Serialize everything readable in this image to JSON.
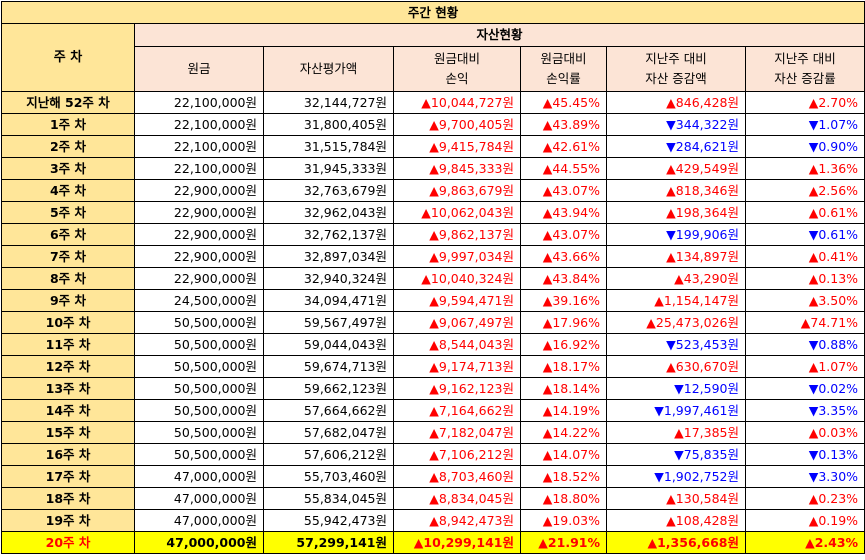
{
  "title": "주간 현황",
  "week_header": "주 차",
  "asset_header": "자산현황",
  "columns": [
    "원금",
    "자산평가액",
    "원금대비\n손익",
    "원금대비\n손익률",
    "지난주 대비\n자산 증감액",
    "지난주 대비\n자산 증감률"
  ],
  "arrows": {
    "up": "▲",
    "down": "▼"
  },
  "colors": {
    "header_yellow": "#ffe699",
    "header_peach": "#fce4d6",
    "highlight": "#ffff00",
    "up": "#ff0000",
    "down": "#0000ff"
  },
  "rows": [
    {
      "week": "지난해 52주 차",
      "principal": "22,100,000원",
      "valuation": "32,144,727원",
      "pl": "10,044,727원",
      "pl_dir": "up",
      "rate": "45.45%",
      "rate_dir": "up",
      "chg": "846,428원",
      "chg_dir": "up",
      "chg_rate": "2.70%",
      "chg_rate_dir": "up"
    },
    {
      "week": "1주 차",
      "principal": "22,100,000원",
      "valuation": "31,800,405원",
      "pl": "9,700,405원",
      "pl_dir": "up",
      "rate": "43.89%",
      "rate_dir": "up",
      "chg": "344,322원",
      "chg_dir": "down",
      "chg_rate": "1.07%",
      "chg_rate_dir": "down"
    },
    {
      "week": "2주 차",
      "principal": "22,100,000원",
      "valuation": "31,515,784원",
      "pl": "9,415,784원",
      "pl_dir": "up",
      "rate": "42.61%",
      "rate_dir": "up",
      "chg": "284,621원",
      "chg_dir": "down",
      "chg_rate": "0.90%",
      "chg_rate_dir": "down"
    },
    {
      "week": "3주 차",
      "principal": "22,100,000원",
      "valuation": "31,945,333원",
      "pl": "9,845,333원",
      "pl_dir": "up",
      "rate": "44.55%",
      "rate_dir": "up",
      "chg": "429,549원",
      "chg_dir": "up",
      "chg_rate": "1.36%",
      "chg_rate_dir": "up"
    },
    {
      "week": "4주 차",
      "principal": "22,900,000원",
      "valuation": "32,763,679원",
      "pl": "9,863,679원",
      "pl_dir": "up",
      "rate": "43.07%",
      "rate_dir": "up",
      "chg": "818,346원",
      "chg_dir": "up",
      "chg_rate": "2.56%",
      "chg_rate_dir": "up"
    },
    {
      "week": "5주 차",
      "principal": "22,900,000원",
      "valuation": "32,962,043원",
      "pl": "10,062,043원",
      "pl_dir": "up",
      "rate": "43.94%",
      "rate_dir": "up",
      "chg": "198,364원",
      "chg_dir": "up",
      "chg_rate": "0.61%",
      "chg_rate_dir": "up"
    },
    {
      "week": "6주 차",
      "principal": "22,900,000원",
      "valuation": "32,762,137원",
      "pl": "9,862,137원",
      "pl_dir": "up",
      "rate": "43.07%",
      "rate_dir": "up",
      "chg": "199,906원",
      "chg_dir": "down",
      "chg_rate": "0.61%",
      "chg_rate_dir": "down"
    },
    {
      "week": "7주 차",
      "principal": "22,900,000원",
      "valuation": "32,897,034원",
      "pl": "9,997,034원",
      "pl_dir": "up",
      "rate": "43.66%",
      "rate_dir": "up",
      "chg": "134,897원",
      "chg_dir": "up",
      "chg_rate": "0.41%",
      "chg_rate_dir": "up"
    },
    {
      "week": "8주 차",
      "principal": "22,900,000원",
      "valuation": "32,940,324원",
      "pl": "10,040,324원",
      "pl_dir": "up",
      "rate": "43.84%",
      "rate_dir": "up",
      "chg": "43,290원",
      "chg_dir": "up",
      "chg_rate": "0.13%",
      "chg_rate_dir": "up"
    },
    {
      "week": "9주 차",
      "principal": "24,500,000원",
      "valuation": "34,094,471원",
      "pl": "9,594,471원",
      "pl_dir": "up",
      "rate": "39.16%",
      "rate_dir": "up",
      "chg": "1,154,147원",
      "chg_dir": "up",
      "chg_rate": "3.50%",
      "chg_rate_dir": "up"
    },
    {
      "week": "10주 차",
      "principal": "50,500,000원",
      "valuation": "59,567,497원",
      "pl": "9,067,497원",
      "pl_dir": "up",
      "rate": "17.96%",
      "rate_dir": "up",
      "chg": "25,473,026원",
      "chg_dir": "up",
      "chg_rate": "74.71%",
      "chg_rate_dir": "up"
    },
    {
      "week": "11주 차",
      "principal": "50,500,000원",
      "valuation": "59,044,043원",
      "pl": "8,544,043원",
      "pl_dir": "up",
      "rate": "16.92%",
      "rate_dir": "up",
      "chg": "523,453원",
      "chg_dir": "down",
      "chg_rate": "0.88%",
      "chg_rate_dir": "down"
    },
    {
      "week": "12주 차",
      "principal": "50,500,000원",
      "valuation": "59,674,713원",
      "pl": "9,174,713원",
      "pl_dir": "up",
      "rate": "18.17%",
      "rate_dir": "up",
      "chg": "630,670원",
      "chg_dir": "up",
      "chg_rate": "1.07%",
      "chg_rate_dir": "up"
    },
    {
      "week": "13주 차",
      "principal": "50,500,000원",
      "valuation": "59,662,123원",
      "pl": "9,162,123원",
      "pl_dir": "up",
      "rate": "18.14%",
      "rate_dir": "up",
      "chg": "12,590원",
      "chg_dir": "down",
      "chg_rate": "0.02%",
      "chg_rate_dir": "down"
    },
    {
      "week": "14주 차",
      "principal": "50,500,000원",
      "valuation": "57,664,662원",
      "pl": "7,164,662원",
      "pl_dir": "up",
      "rate": "14.19%",
      "rate_dir": "up",
      "chg": "1,997,461원",
      "chg_dir": "down",
      "chg_rate": "3.35%",
      "chg_rate_dir": "down"
    },
    {
      "week": "15주 차",
      "principal": "50,500,000원",
      "valuation": "57,682,047원",
      "pl": "7,182,047원",
      "pl_dir": "up",
      "rate": "14.22%",
      "rate_dir": "up",
      "chg": "17,385원",
      "chg_dir": "up",
      "chg_rate": "0.03%",
      "chg_rate_dir": "up"
    },
    {
      "week": "16주 차",
      "principal": "50,500,000원",
      "valuation": "57,606,212원",
      "pl": "7,106,212원",
      "pl_dir": "up",
      "rate": "14.07%",
      "rate_dir": "up",
      "chg": "75,835원",
      "chg_dir": "down",
      "chg_rate": "0.13%",
      "chg_rate_dir": "down"
    },
    {
      "week": "17주 차",
      "principal": "47,000,000원",
      "valuation": "55,703,460원",
      "pl": "8,703,460원",
      "pl_dir": "up",
      "rate": "18.52%",
      "rate_dir": "up",
      "chg": "1,902,752원",
      "chg_dir": "down",
      "chg_rate": "3.30%",
      "chg_rate_dir": "down"
    },
    {
      "week": "18주 차",
      "principal": "47,000,000원",
      "valuation": "55,834,045원",
      "pl": "8,834,045원",
      "pl_dir": "up",
      "rate": "18.80%",
      "rate_dir": "up",
      "chg": "130,584원",
      "chg_dir": "up",
      "chg_rate": "0.23%",
      "chg_rate_dir": "up"
    },
    {
      "week": "19주 차",
      "principal": "47,000,000원",
      "valuation": "55,942,473원",
      "pl": "8,942,473원",
      "pl_dir": "up",
      "rate": "19.03%",
      "rate_dir": "up",
      "chg": "108,428원",
      "chg_dir": "up",
      "chg_rate": "0.19%",
      "chg_rate_dir": "up"
    },
    {
      "week": "20주 차",
      "principal": "47,000,000원",
      "valuation": "57,299,141원",
      "pl": "10,299,141원",
      "pl_dir": "up",
      "rate": "21.91%",
      "rate_dir": "up",
      "chg": "1,356,668원",
      "chg_dir": "up",
      "chg_rate": "2.43%",
      "chg_rate_dir": "up",
      "highlight": true
    }
  ]
}
